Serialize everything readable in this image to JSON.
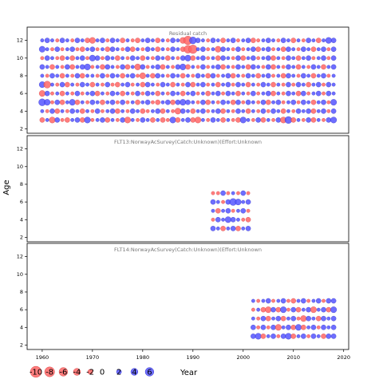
{
  "figure": {
    "ylabel": "Age",
    "xlabel": "Year",
    "x_ticks": [
      1960,
      1970,
      1980,
      1990,
      2000,
      2010,
      2020
    ],
    "y_ticks": [
      2,
      4,
      6,
      8,
      10,
      12
    ]
  },
  "legend": {
    "values": [
      -10,
      -8,
      -6,
      -4,
      -2,
      0,
      2,
      4,
      6
    ],
    "labels": [
      "-10",
      "-8",
      "-6",
      "-4",
      "-2",
      "0",
      "2",
      "4",
      "6"
    ],
    "title": "Year"
  },
  "colors": {
    "positive": "#5555ff",
    "negative": "#ff6666",
    "positive_stroke": "#2222bb",
    "negative_stroke": "#cc3333",
    "panel_title": "#777777"
  },
  "chart_data": [
    {
      "type": "scatter",
      "variant": "bubble",
      "title": "Residual catch",
      "x_range": [
        1957,
        2021
      ],
      "y_range": [
        1.5,
        13.5
      ],
      "ages": [
        3,
        4,
        5,
        6,
        7,
        8,
        9,
        10,
        11,
        12
      ],
      "years": [
        1960,
        2018
      ],
      "rows": {
        "3": [
          -2,
          1,
          -3,
          2,
          -1,
          -2,
          1,
          2,
          -2,
          3,
          -1,
          1,
          2,
          -2,
          1,
          -1,
          2,
          -3,
          1,
          -1,
          2,
          1,
          -2,
          1,
          -2,
          -1,
          3,
          -2,
          1,
          2,
          -2,
          -3,
          1,
          -1,
          2,
          1,
          -2,
          1,
          -1,
          -2,
          3,
          1,
          -1,
          2,
          -2,
          1,
          -1,
          2,
          -3,
          4,
          -2,
          1,
          -1,
          2,
          -2,
          1,
          -1,
          2,
          3
        ],
        "4": [
          1,
          -1,
          2,
          -2,
          1,
          -1,
          2,
          1,
          -2,
          1,
          -1,
          2,
          -1,
          1,
          2,
          -2,
          1,
          -1,
          2,
          1,
          -2,
          -1,
          1,
          2,
          -2,
          1,
          -1,
          -3,
          2,
          1,
          -2,
          1,
          2,
          -1,
          1,
          2,
          -2,
          1,
          -1,
          2,
          1,
          -2,
          1,
          -1,
          2,
          -1,
          2,
          1,
          -2,
          1,
          -1,
          2,
          1,
          2,
          -2,
          1,
          2,
          -1,
          2
        ],
        "5": [
          4,
          3,
          -1,
          2,
          -2,
          1,
          3,
          -2,
          1,
          -1,
          2,
          1,
          -2,
          1,
          2,
          -1,
          2,
          -1,
          1,
          -2,
          1,
          2,
          -1,
          -2,
          1,
          2,
          -2,
          2,
          3,
          2,
          1,
          -1,
          2,
          -2,
          1,
          -1,
          2,
          1,
          -2,
          2,
          -1,
          2,
          1,
          -1,
          2,
          -2,
          1,
          2,
          -1,
          1,
          2,
          -1,
          2,
          1,
          -2,
          1,
          2,
          -1,
          3
        ],
        "6": [
          -3,
          2,
          -1,
          1,
          -2,
          1,
          -1,
          2,
          -1,
          1,
          2,
          -2,
          1,
          -1,
          2,
          1,
          -2,
          1,
          -1,
          2,
          -1,
          2,
          1,
          -2,
          1,
          -1,
          2,
          1,
          -2,
          1,
          2,
          -1,
          1,
          -2,
          1,
          2,
          -1,
          2,
          1,
          -2,
          1,
          -1,
          2,
          -1,
          1,
          2,
          -2,
          1,
          -1,
          2,
          1,
          -2,
          2,
          -1,
          1,
          2,
          -1,
          2,
          1
        ],
        "7": [
          3,
          -4,
          1,
          -1,
          2,
          -2,
          1,
          -1,
          2,
          1,
          -2,
          1,
          -1,
          2,
          -1,
          -2,
          1,
          2,
          -1,
          1,
          -2,
          2,
          1,
          -1,
          2,
          1,
          -2,
          1,
          -1,
          2,
          -2,
          1,
          2,
          -1,
          1,
          -2,
          1,
          2,
          -1,
          2,
          1,
          -2,
          1,
          -1,
          2,
          1,
          -2,
          1,
          -1,
          2,
          -1,
          2,
          1,
          -2,
          1,
          2,
          -1,
          2,
          1
        ],
        "8": [
          1,
          -1,
          2,
          1,
          -2,
          1,
          -1,
          2,
          -2,
          1,
          1,
          -1,
          2,
          -1,
          2,
          1,
          -2,
          1,
          2,
          -1,
          -3,
          1,
          -2,
          2,
          1,
          -1,
          2,
          1,
          -2,
          1,
          -1,
          2,
          1,
          -2,
          2,
          -1,
          1,
          2,
          -2,
          1,
          -1,
          2,
          1,
          -2,
          1,
          2,
          -1,
          1,
          -2,
          2,
          1,
          -1,
          2,
          1,
          -2,
          1,
          2,
          -1,
          1
        ],
        "9": [
          2,
          1,
          -2,
          1,
          -1,
          2,
          -2,
          1,
          2,
          3,
          -1,
          1,
          -2,
          2,
          1,
          -1,
          2,
          -2,
          1,
          -3,
          2,
          -1,
          1,
          2,
          -2,
          1,
          -1,
          2,
          3,
          -2,
          1,
          -1,
          2,
          -1,
          1,
          2,
          -2,
          1,
          -1,
          2,
          1,
          -2,
          2,
          1,
          -1,
          2,
          -2,
          1,
          -1,
          2,
          1,
          -2,
          1,
          -1,
          2,
          1,
          -2,
          1,
          2
        ],
        "10": [
          -1,
          2,
          1,
          -1,
          -2,
          1,
          -2,
          1,
          2,
          -1,
          3,
          2,
          -1,
          2,
          1,
          -2,
          1,
          -1,
          2,
          1,
          -2,
          1,
          -1,
          2,
          1,
          -2,
          1,
          -1,
          2,
          3,
          -2,
          1,
          2,
          -1,
          1,
          -2,
          2,
          1,
          -1,
          2,
          -2,
          1,
          2,
          -1,
          1,
          2,
          -2,
          1,
          -1,
          2,
          1,
          -2,
          1,
          2,
          -1,
          1,
          2,
          -1,
          2
        ],
        "11": [
          3,
          1,
          -1,
          2,
          -1,
          1,
          2,
          -1,
          -2,
          1,
          2,
          -1,
          1,
          -2,
          2,
          1,
          -1,
          2,
          -2,
          1,
          -1,
          2,
          1,
          -2,
          1,
          -1,
          2,
          1,
          -2,
          -5,
          -6,
          1,
          2,
          -1,
          1,
          -3,
          2,
          1,
          -1,
          2,
          -1,
          1,
          2,
          -2,
          1,
          2,
          -1,
          1,
          -2,
          2,
          1,
          -1,
          2,
          1,
          -2,
          1,
          2,
          -1,
          2
        ],
        "12": [
          1,
          2,
          1,
          -1,
          2,
          1,
          -1,
          2,
          1,
          -2,
          -3,
          1,
          2,
          -1,
          2,
          1,
          -2,
          1,
          -1,
          -2,
          1,
          2,
          1,
          -2,
          1,
          -1,
          2,
          1,
          -3,
          -6,
          4,
          2,
          1,
          -1,
          2,
          1,
          -2,
          1,
          2,
          -1,
          1,
          2,
          -2,
          -1,
          1,
          2,
          1,
          -1,
          2,
          1,
          -2,
          1,
          -1,
          2,
          1,
          -2,
          1,
          3,
          2
        ]
      }
    },
    {
      "type": "scatter",
      "variant": "bubble",
      "title": "FLT13:NorwayAcSurvey(Catch:Unknown)(Effort:Unknown",
      "x_range": [
        1957,
        2021
      ],
      "y_range": [
        1.5,
        13.5
      ],
      "ages": [
        3,
        4,
        5,
        6,
        7
      ],
      "years": [
        1994,
        2001
      ],
      "rows": {
        "3": [
          2,
          1,
          -2,
          1,
          2,
          -2,
          1,
          2
        ],
        "4": [
          -1,
          2,
          1,
          3,
          2,
          1,
          -1,
          -2
        ],
        "5": [
          1,
          -2,
          1,
          2,
          -1,
          1,
          2,
          -1
        ],
        "6": [
          2,
          1,
          -1,
          2,
          4,
          3,
          1,
          2
        ],
        "7": [
          -1,
          -1,
          2,
          -1,
          1,
          -1,
          2,
          -1
        ]
      }
    },
    {
      "type": "scatter",
      "variant": "bubble",
      "title": "FLT14:NorwayAcSurvey(Catch:Unknown)(Effort:Unknown",
      "x_range": [
        1957,
        2021
      ],
      "y_range": [
        1.5,
        13.5
      ],
      "ages": [
        3,
        4,
        5,
        6,
        7
      ],
      "years": [
        2002,
        2018
      ],
      "rows": {
        "3": [
          2,
          3,
          -2,
          1,
          2,
          -1,
          2,
          3,
          -2,
          1,
          2,
          -1,
          2,
          1,
          -2,
          2,
          2
        ],
        "4": [
          2,
          -1,
          2,
          -1,
          2,
          -3,
          1,
          2,
          -2,
          3,
          -2,
          1,
          2,
          -1,
          2,
          1,
          2
        ],
        "5": [
          1,
          -1,
          2,
          -2,
          1,
          2,
          -2,
          1,
          2,
          -1,
          -3,
          2,
          1,
          -2,
          2,
          1,
          2
        ],
        "6": [
          -1,
          1,
          -2,
          -3,
          2,
          -2,
          3,
          -1,
          2,
          -2,
          1,
          2,
          -3,
          1,
          2,
          -2,
          3
        ],
        "7": [
          1,
          -1,
          1,
          2,
          -1,
          1,
          2,
          -1,
          -2,
          1,
          2,
          -1,
          1,
          2,
          -1,
          2,
          2
        ]
      }
    }
  ]
}
